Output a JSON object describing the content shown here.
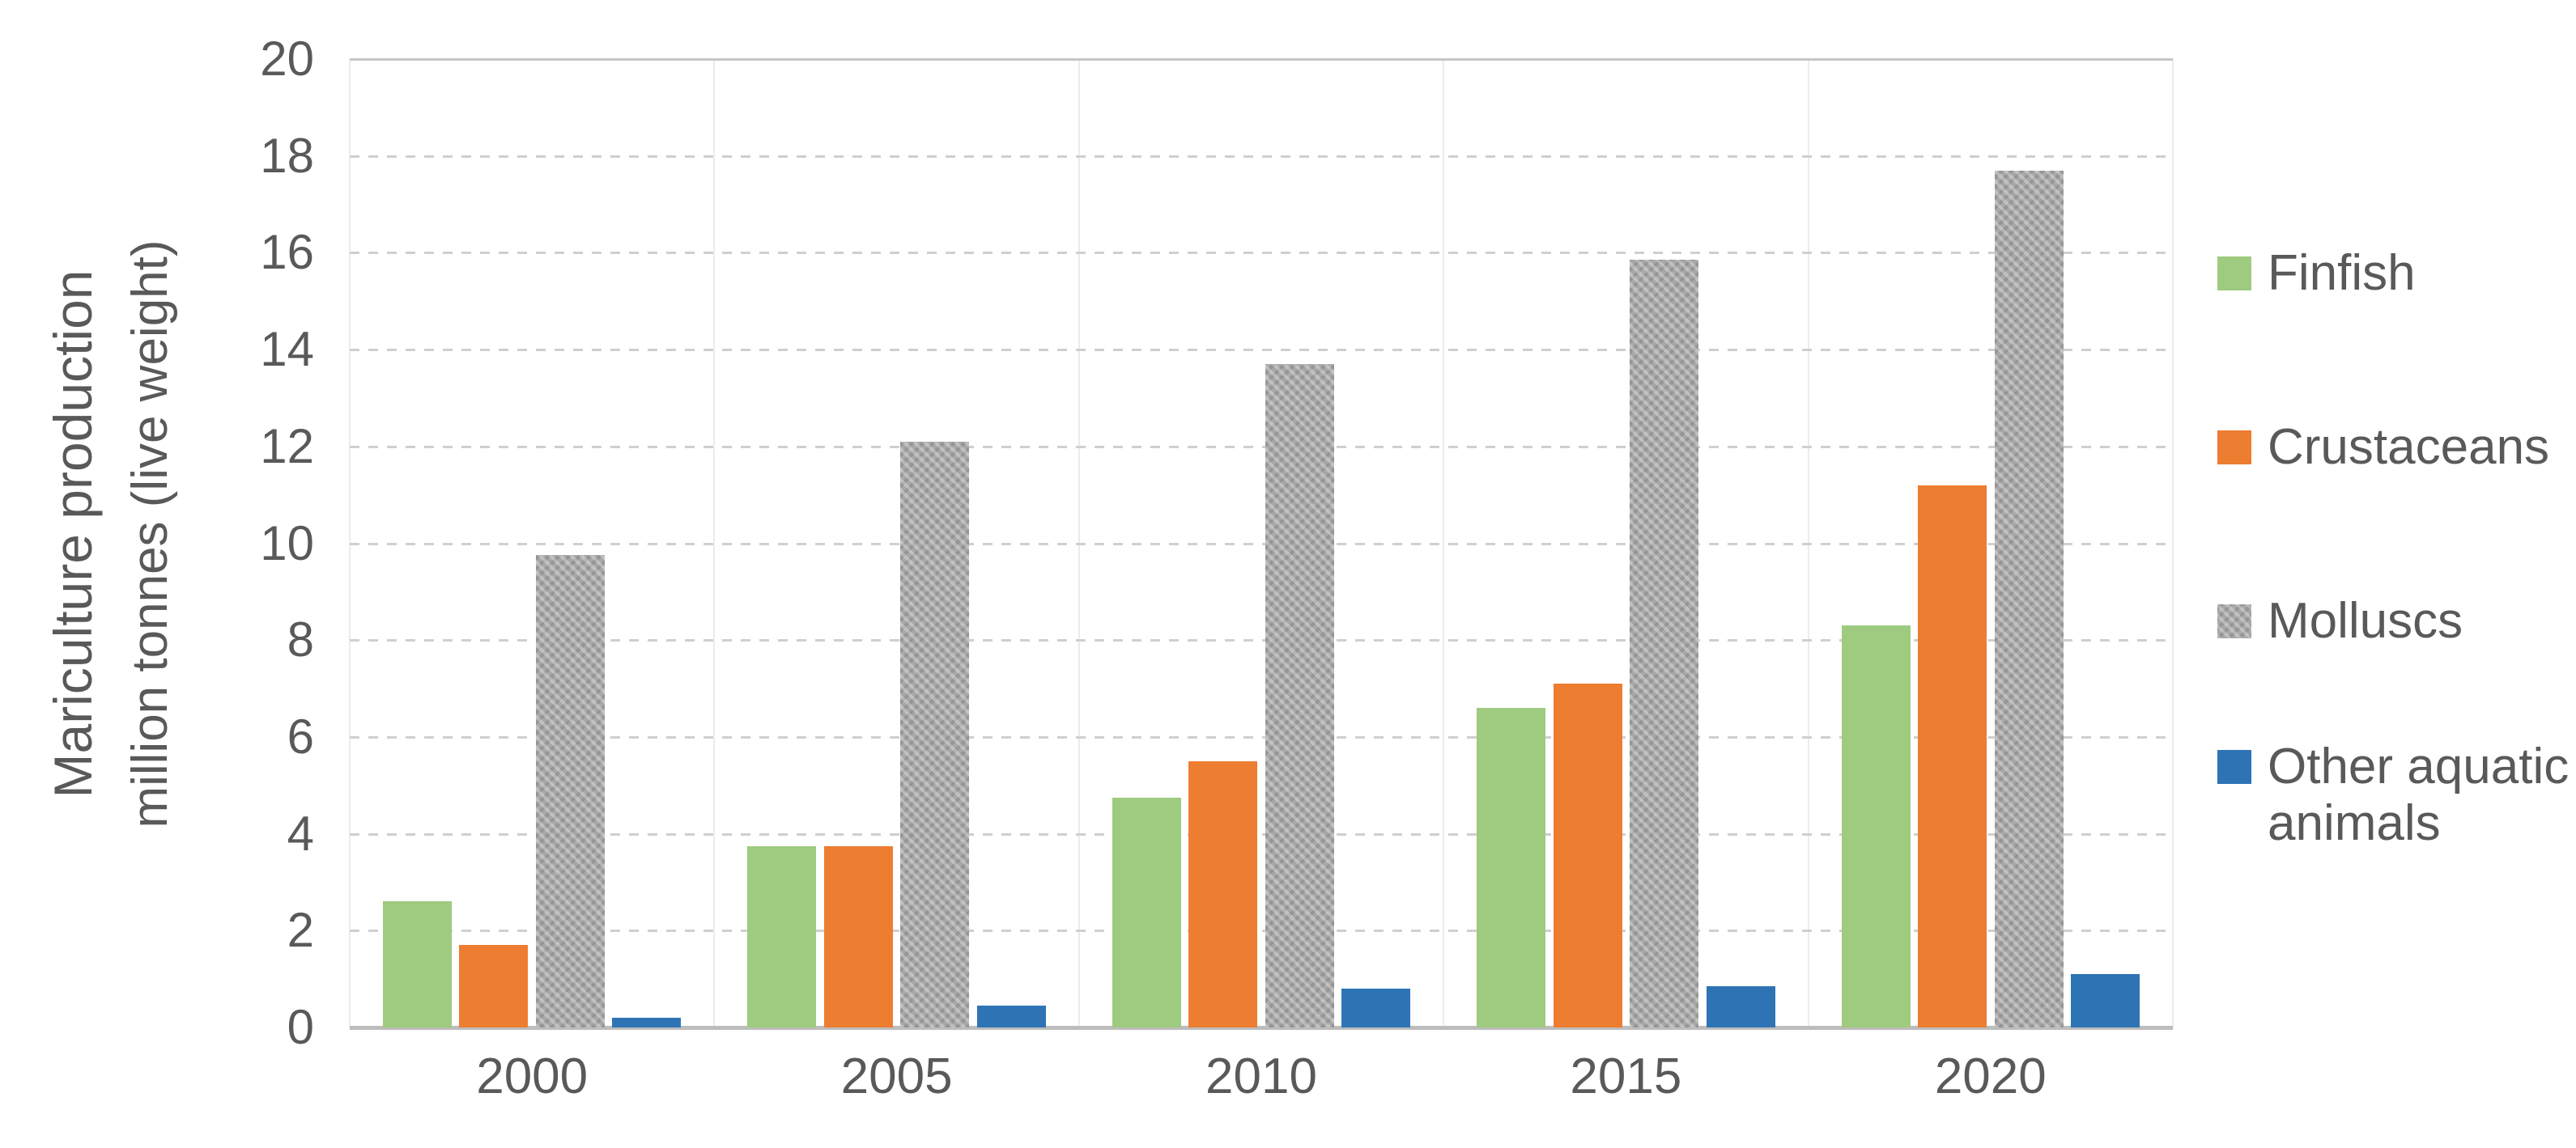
{
  "chart_data": {
    "type": "bar",
    "title": "",
    "ylabel_line1": "Mariculture production",
    "ylabel_line2": "million tonnes (live weight)",
    "xlabel": "",
    "categories": [
      "2000",
      "2005",
      "2010",
      "2015",
      "2020"
    ],
    "series": [
      {
        "name": "Finfish",
        "color": "#9ECB7F",
        "pattern": false,
        "values": [
          2.6,
          3.75,
          4.75,
          6.6,
          8.3
        ]
      },
      {
        "name": "Crustaceans",
        "color": "#ED7D31",
        "pattern": false,
        "values": [
          1.7,
          3.75,
          5.5,
          7.1,
          11.2
        ]
      },
      {
        "name": "Molluscs",
        "color": "#A7A7A7",
        "pattern": true,
        "values": [
          9.75,
          12.1,
          13.7,
          15.85,
          17.7
        ]
      },
      {
        "name": "Other aquatic animals",
        "color": "#2E74B5",
        "pattern": false,
        "values": [
          0.2,
          0.45,
          0.8,
          0.85,
          1.1
        ]
      }
    ],
    "legend": [
      {
        "series": "Finfish",
        "label_lines": [
          "Finfish"
        ]
      },
      {
        "series": "Crustaceans",
        "label_lines": [
          "Crustaceans"
        ]
      },
      {
        "series": "Molluscs",
        "label_lines": [
          "Molluscs"
        ]
      },
      {
        "series": "Other aquatic animals",
        "label_lines": [
          "Other aquatic",
          "animals"
        ]
      }
    ],
    "legend_position": "right",
    "y_axis": {
      "min": 0,
      "max": 20,
      "step": 2,
      "tick_labels": [
        "0",
        "2",
        "4",
        "6",
        "8",
        "10",
        "12",
        "14",
        "16",
        "18",
        "20"
      ]
    },
    "grid": true,
    "colors": {
      "finfish": "#9ECB7F",
      "crustaceans": "#ED7D31",
      "molluscs": "#A7A7A7",
      "other_aquatic_animals": "#2E74B5",
      "axis_text": "#595959",
      "gridline": "#CFCFCF",
      "axis_line": "#BDBDBD"
    }
  }
}
